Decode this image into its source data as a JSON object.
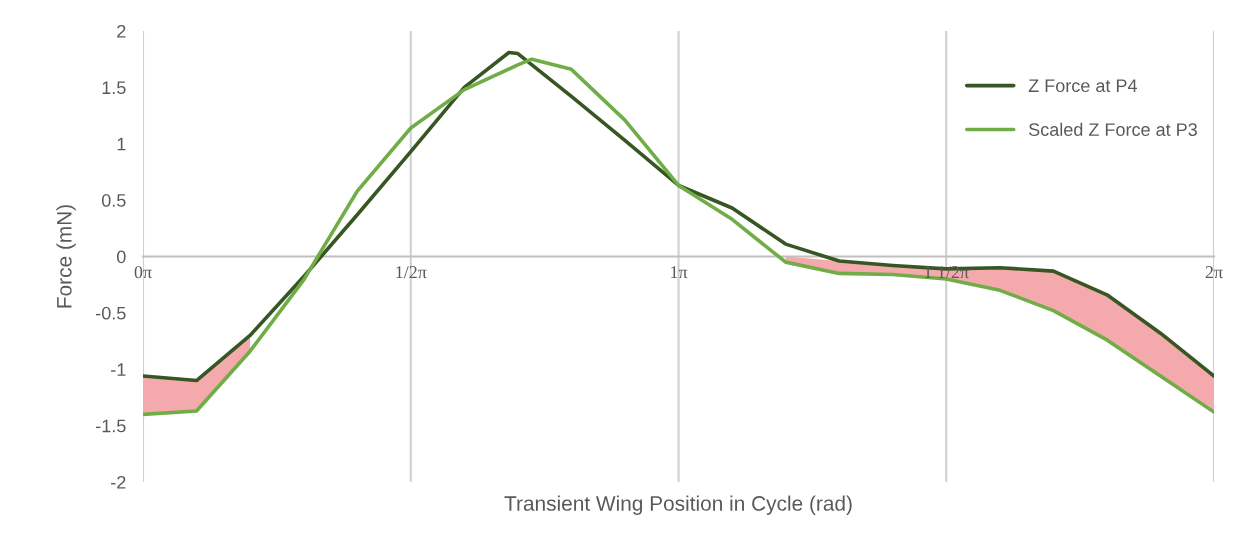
{
  "chart_data": {
    "type": "line",
    "xlabel": "Transient Wing Position in Cycle (rad)",
    "ylabel": "Force (mN)",
    "xlim": [
      0,
      6.283
    ],
    "ylim": [
      -2,
      2
    ],
    "xticks": [
      {
        "value": 0,
        "label": "0π"
      },
      {
        "value": 1.571,
        "label": "1/2π"
      },
      {
        "value": 3.142,
        "label": "1π"
      },
      {
        "value": 4.712,
        "label": "1 1/2π"
      },
      {
        "value": 6.283,
        "label": "2π"
      }
    ],
    "yticks": [
      -2,
      -1.5,
      -1,
      -0.5,
      0,
      0.5,
      1,
      1.5,
      2
    ],
    "grid": "x",
    "legend": "top right",
    "marker": "none",
    "line_style": "solid",
    "series": [
      {
        "name": "Z Force at P4",
        "color": "#375623",
        "x": [
          0,
          0.314,
          0.628,
          0.942,
          1.257,
          1.571,
          1.885,
          2.147,
          2.199,
          2.513,
          2.827,
          3.142,
          3.456,
          3.77,
          4.084,
          4.398,
          4.712,
          5.027,
          5.341,
          5.655,
          5.969,
          6.283
        ],
        "values": [
          -1.06,
          -1.1,
          -0.7,
          -0.18,
          0.37,
          0.93,
          1.5,
          1.81,
          1.8,
          1.42,
          1.03,
          0.63,
          0.43,
          0.11,
          -0.04,
          -0.08,
          -0.11,
          -0.1,
          -0.13,
          -0.34,
          -0.68,
          -1.06
        ],
        "lower": [
          -1.4,
          -1.37,
          -0.84,
          null,
          null,
          null,
          null,
          null,
          null,
          null,
          null,
          null,
          null,
          -0.05,
          -0.15,
          -0.16,
          -0.2,
          -0.3,
          -0.48,
          -0.74,
          -1.06,
          -1.38
        ],
        "upper": [
          -1.06,
          -1.1,
          -0.7,
          null,
          null,
          null,
          null,
          null,
          null,
          null,
          null,
          null,
          null,
          0,
          -0.04,
          -0.08,
          -0.11,
          -0.1,
          -0.13,
          -0.34,
          -0.68,
          -1.06
        ]
      },
      {
        "name": "Scaled Z Force at P3",
        "color": "#70ad47",
        "x": [
          0,
          0.314,
          0.628,
          0.942,
          1.257,
          1.571,
          1.885,
          2.199,
          2.281,
          2.513,
          2.827,
          3.142,
          3.456,
          3.77,
          4.084,
          4.398,
          4.712,
          5.027,
          5.341,
          5.655,
          5.969,
          6.283
        ],
        "values": [
          -1.4,
          -1.37,
          -0.84,
          -0.21,
          0.58,
          1.14,
          1.48,
          1.7,
          1.75,
          1.66,
          1.21,
          0.63,
          0.33,
          -0.05,
          -0.15,
          -0.16,
          -0.2,
          -0.3,
          -0.48,
          -0.74,
          -1.06,
          -1.38
        ]
      }
    ]
  }
}
